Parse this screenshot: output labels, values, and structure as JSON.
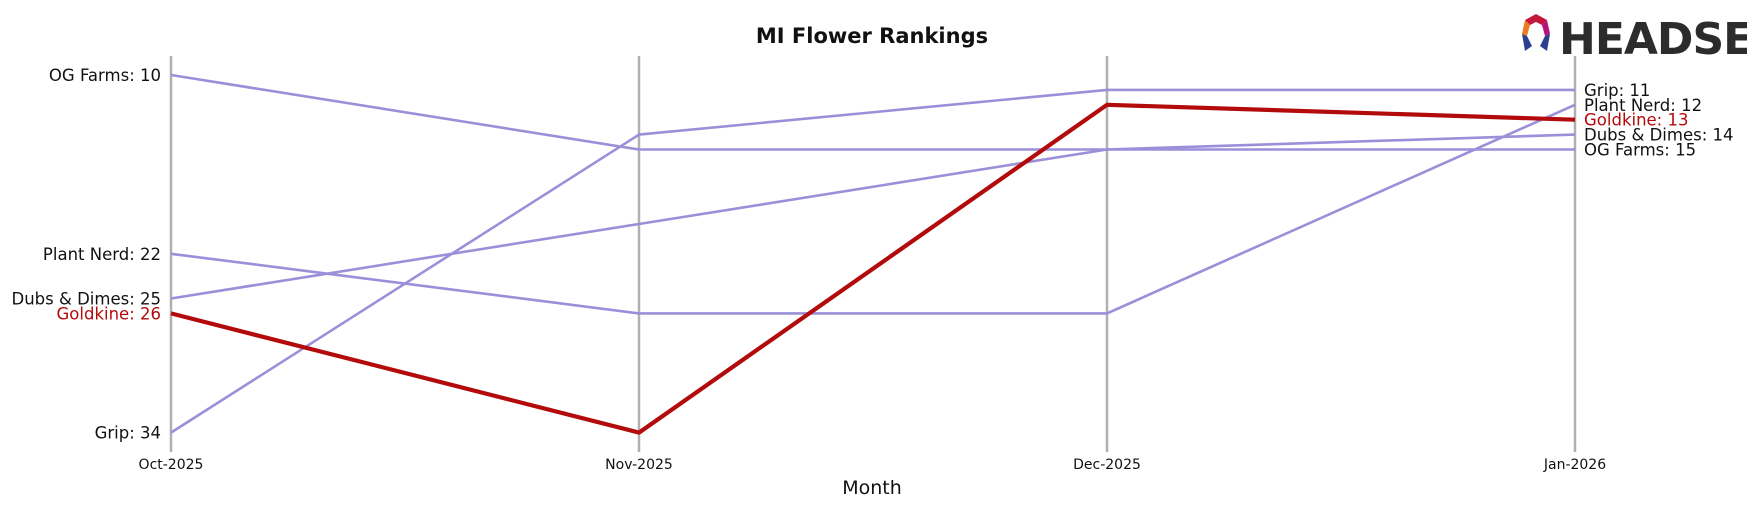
{
  "chart_data": {
    "type": "line",
    "title": "MI Flower Rankings",
    "xlabel": "Month",
    "ylabel": "",
    "categories": [
      "Oct-2025",
      "Nov-2025",
      "Dec-2025",
      "Jan-2026"
    ],
    "y_inverted": true,
    "ylim": [
      35,
      9
    ],
    "grid": "vertical-month-lines",
    "series": [
      {
        "name": "OG Farms",
        "values": [
          10,
          15,
          15,
          15
        ],
        "color": "#9b8fd9",
        "highlight": false
      },
      {
        "name": "Plant Nerd",
        "values": [
          22,
          26,
          26,
          12
        ],
        "color": "#9b8fd9",
        "highlight": false
      },
      {
        "name": "Dubs & Dimes",
        "values": [
          25,
          20,
          15,
          14
        ],
        "color": "#9b8fd9",
        "highlight": false
      },
      {
        "name": "Grip",
        "values": [
          34,
          14,
          11,
          11
        ],
        "color": "#9b8fd9",
        "highlight": false
      },
      {
        "name": "Goldkine",
        "values": [
          26,
          34,
          12,
          13
        ],
        "color": "#b30b0b",
        "highlight": true
      }
    ],
    "left_labels": [
      {
        "series": "OG Farms",
        "text": "OG Farms: 10"
      },
      {
        "series": "Plant Nerd",
        "text": "Plant Nerd: 22"
      },
      {
        "series": "Dubs & Dimes",
        "text": "Dubs & Dimes: 25"
      },
      {
        "series": "Goldkine",
        "text": "Goldkine: 26"
      },
      {
        "series": "Grip",
        "text": "Grip: 34"
      }
    ],
    "right_labels": [
      {
        "series": "Grip",
        "text": "Grip: 11"
      },
      {
        "series": "Plant Nerd",
        "text": "Plant Nerd: 12"
      },
      {
        "series": "Goldkine",
        "text": "Goldkine: 13"
      },
      {
        "series": "Dubs & Dimes",
        "text": "Dubs & Dimes: 14"
      },
      {
        "series": "OG Farms",
        "text": "OG Farms: 15"
      }
    ]
  },
  "logo": {
    "text": "HEADSET"
  },
  "colors": {
    "axis_line": "#b0b0b0",
    "other_series": "#9b8fd9",
    "highlight": "#b30b0b"
  }
}
